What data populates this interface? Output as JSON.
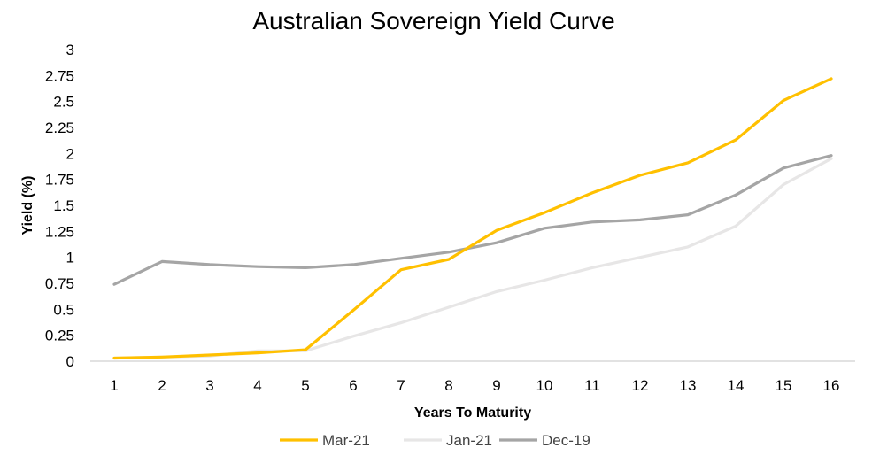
{
  "chart_data": {
    "type": "line",
    "title": "Australian Sovereign Yield Curve",
    "xlabel": "Years To Maturity",
    "ylabel": "Yield (%)",
    "categories": [
      "1",
      "2",
      "3",
      "4",
      "5",
      "6",
      "7",
      "8",
      "9",
      "10",
      "11",
      "12",
      "13",
      "14",
      "15",
      "16"
    ],
    "ylim": [
      0,
      3
    ],
    "yticks": [
      "0",
      "0.25",
      "0.5",
      "0.75",
      "1",
      "1.25",
      "1.5",
      "1.75",
      "2",
      "2.25",
      "2.5",
      "2.75",
      "3"
    ],
    "grid": false,
    "legend_position": "bottom",
    "series": [
      {
        "name": "Mar-21",
        "color": "#FFC000",
        "values": [
          0.03,
          0.04,
          0.06,
          0.08,
          0.11,
          0.49,
          0.88,
          0.98,
          1.26,
          1.43,
          1.62,
          1.79,
          1.91,
          2.13,
          2.51,
          2.72
        ]
      },
      {
        "name": "Jan-21",
        "color": "#E7E6E6",
        "values": [
          0.03,
          0.04,
          0.05,
          0.1,
          0.1,
          0.24,
          0.37,
          0.52,
          0.67,
          0.78,
          0.9,
          1.0,
          1.1,
          1.3,
          1.7,
          1.95
        ]
      },
      {
        "name": "Dec-19",
        "color": "#A5A5A5",
        "values": [
          0.74,
          0.96,
          0.93,
          0.91,
          0.9,
          0.93,
          0.99,
          1.05,
          1.14,
          1.28,
          1.34,
          1.36,
          1.41,
          1.6,
          1.86,
          1.98
        ]
      }
    ]
  }
}
